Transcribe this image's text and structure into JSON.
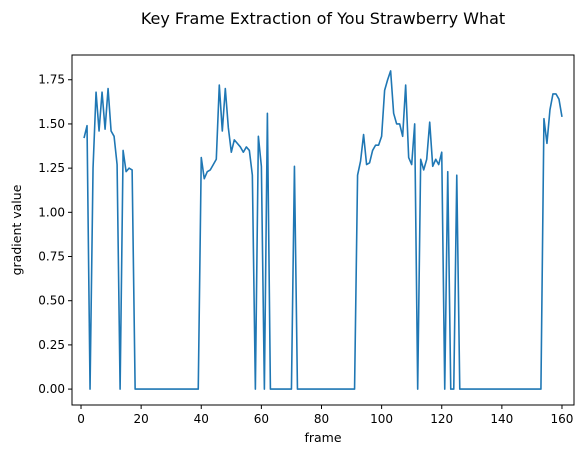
{
  "chart_data": {
    "type": "line",
    "title": "Key Frame Extraction of You Strawberry What",
    "xlabel": "frame",
    "ylabel": "gradient value",
    "xlim": [
      -3,
      164
    ],
    "ylim": [
      -0.09,
      1.89
    ],
    "xticks": [
      0,
      20,
      40,
      60,
      80,
      100,
      120,
      140,
      160
    ],
    "xtick_labels": [
      "0",
      "20",
      "40",
      "60",
      "80",
      "100",
      "120",
      "140",
      "160"
    ],
    "yticks": [
      0.0,
      0.25,
      0.5,
      0.75,
      1.0,
      1.25,
      1.5,
      1.75
    ],
    "ytick_labels": [
      "0.00",
      "0.25",
      "0.50",
      "0.75",
      "1.00",
      "1.25",
      "1.50",
      "1.75"
    ],
    "grid": false,
    "line_color": "#1f77b4",
    "series": [
      {
        "x": [
          1,
          2,
          3,
          4,
          5,
          6,
          7,
          8,
          9,
          10,
          11,
          12,
          13,
          14,
          15,
          16,
          17,
          18,
          19,
          20,
          21,
          22,
          23,
          24,
          25,
          26,
          27,
          28,
          29,
          30,
          31,
          32,
          33,
          34,
          35,
          36,
          37,
          38,
          39,
          40,
          41,
          42,
          43,
          44,
          45,
          46,
          47,
          48,
          49,
          50,
          51,
          52,
          53,
          54,
          55,
          56,
          57,
          58,
          59,
          60,
          61,
          62,
          63,
          64,
          65,
          66,
          67,
          68,
          69,
          70,
          71,
          72,
          73,
          74,
          75,
          76,
          77,
          78,
          79,
          80,
          81,
          82,
          83,
          84,
          85,
          86,
          87,
          88,
          89,
          90,
          91,
          92,
          93,
          94,
          95,
          96,
          97,
          98,
          99,
          100,
          101,
          102,
          103,
          104,
          105,
          106,
          107,
          108,
          109,
          110,
          111,
          112,
          113,
          114,
          115,
          116,
          117,
          118,
          119,
          120,
          121,
          122,
          123,
          124,
          125,
          126,
          127,
          128,
          129,
          130,
          131,
          132,
          133,
          134,
          135,
          136,
          137,
          138,
          139,
          140,
          141,
          142,
          143,
          144,
          145,
          146,
          147,
          148,
          149,
          150,
          151,
          152,
          153,
          154,
          155,
          156,
          157,
          158,
          159,
          160
        ],
        "values": [
          1.42,
          1.49,
          0.0,
          1.25,
          1.68,
          1.46,
          1.68,
          1.47,
          1.7,
          1.46,
          1.43,
          1.27,
          0.0,
          1.35,
          1.23,
          1.25,
          1.24,
          0.0,
          0.0,
          0.0,
          0.0,
          0.0,
          0.0,
          0.0,
          0.0,
          0.0,
          0.0,
          0.0,
          0.0,
          0.0,
          0.0,
          0.0,
          0.0,
          0.0,
          0.0,
          0.0,
          0.0,
          0.0,
          0.0,
          1.31,
          1.19,
          1.23,
          1.24,
          1.27,
          1.3,
          1.72,
          1.46,
          1.7,
          1.48,
          1.34,
          1.41,
          1.39,
          1.37,
          1.34,
          1.37,
          1.35,
          1.21,
          0.0,
          1.43,
          1.26,
          0.0,
          1.56,
          0.0,
          0.0,
          0.0,
          0.0,
          0.0,
          0.0,
          0.0,
          0.0,
          1.26,
          0.0,
          0.0,
          0.0,
          0.0,
          0.0,
          0.0,
          0.0,
          0.0,
          0.0,
          0.0,
          0.0,
          0.0,
          0.0,
          0.0,
          0.0,
          0.0,
          0.0,
          0.0,
          0.0,
          0.0,
          1.21,
          1.29,
          1.44,
          1.27,
          1.28,
          1.35,
          1.38,
          1.38,
          1.43,
          1.69,
          1.75,
          1.8,
          1.56,
          1.5,
          1.5,
          1.43,
          1.72,
          1.31,
          1.27,
          1.5,
          0.0,
          1.3,
          1.24,
          1.3,
          1.51,
          1.26,
          1.3,
          1.27,
          1.34,
          0.0,
          1.23,
          0.0,
          0.0,
          1.21,
          0.0,
          0.0,
          0.0,
          0.0,
          0.0,
          0.0,
          0.0,
          0.0,
          0.0,
          0.0,
          0.0,
          0.0,
          0.0,
          0.0,
          0.0,
          0.0,
          0.0,
          0.0,
          0.0,
          0.0,
          0.0,
          0.0,
          0.0,
          0.0,
          0.0,
          0.0,
          0.0,
          0.0,
          1.53,
          1.39,
          1.58,
          1.67,
          1.67,
          1.64,
          1.54
        ]
      }
    ]
  }
}
